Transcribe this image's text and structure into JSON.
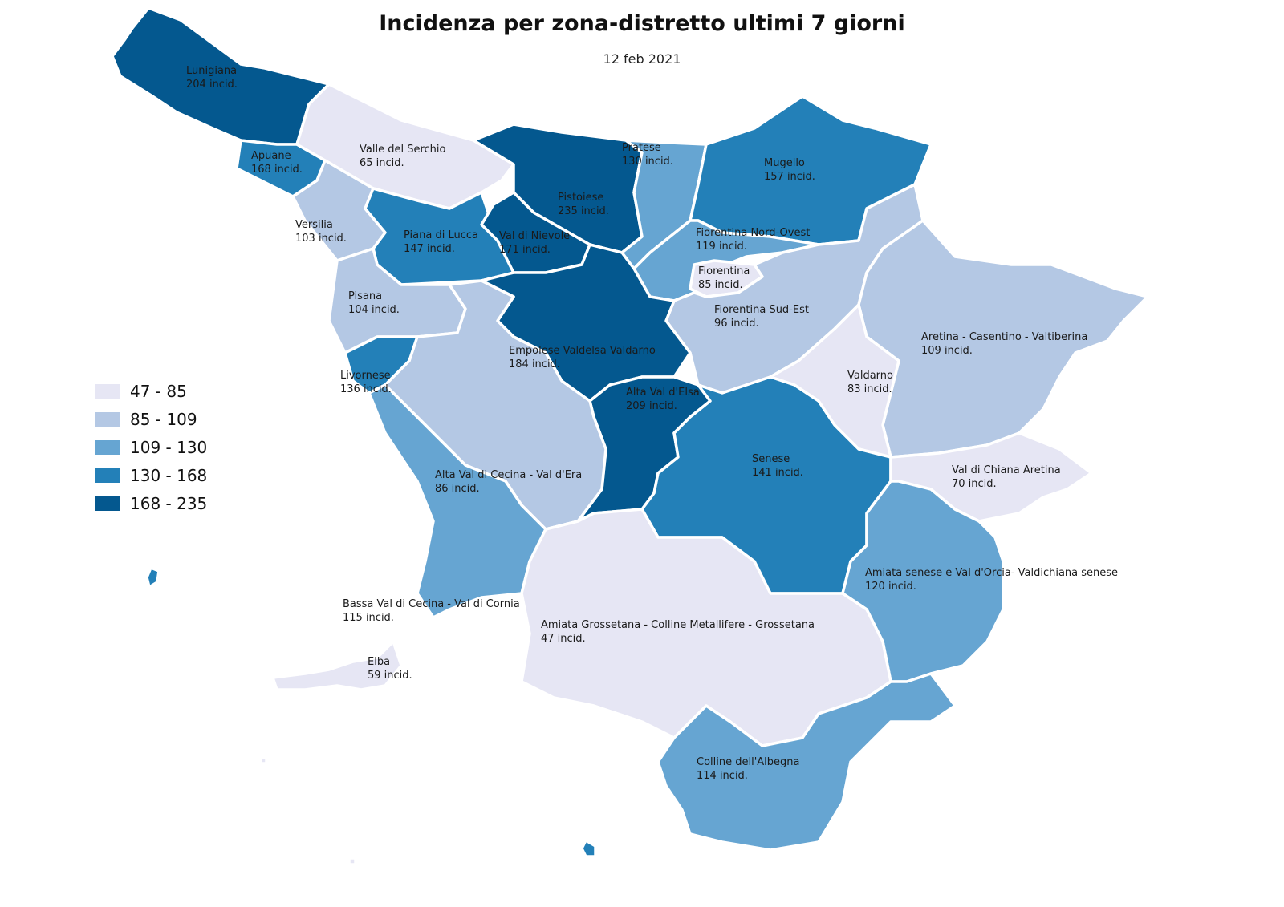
{
  "title": "Incidenza per zona-distretto ultimi 7 giorni",
  "subtitle": "12 feb 2021",
  "palette": [
    "#e6e6f4",
    "#b4c8e4",
    "#66a5d2",
    "#2380b8",
    "#04588f"
  ],
  "legend": [
    {
      "label": "47 - 85",
      "cls": 0
    },
    {
      "label": "85 - 109",
      "cls": 1
    },
    {
      "label": "109 - 130",
      "cls": 2
    },
    {
      "label": "130 - 168",
      "cls": 3
    },
    {
      "label": "168 - 235",
      "cls": 4
    }
  ],
  "zones": [
    {
      "name": "Lunigiana",
      "value_text": "204 incid.",
      "value": 204,
      "cls": 4
    },
    {
      "name": "Apuane",
      "value_text": "168 incid.",
      "value": 168,
      "cls": 3
    },
    {
      "name": "Valle del Serchio",
      "value_text": "65 incid.",
      "value": 65,
      "cls": 0
    },
    {
      "name": "Versilia",
      "value_text": "103 incid.",
      "value": 103,
      "cls": 1
    },
    {
      "name": "Piana di Lucca",
      "value_text": "147 incid.",
      "value": 147,
      "cls": 3
    },
    {
      "name": "Pistoiese",
      "value_text": "235 incid.",
      "value": 235,
      "cls": 4
    },
    {
      "name": "Val di Nievole",
      "value_text": "171 incid.",
      "value": 171,
      "cls": 4
    },
    {
      "name": "Pratese",
      "value_text": "130 incid.",
      "value": 130,
      "cls": 2
    },
    {
      "name": "Mugello",
      "value_text": "157 incid.",
      "value": 157,
      "cls": 3
    },
    {
      "name": "Fiorentina Nord-Ovest",
      "value_text": "119 incid.",
      "value": 119,
      "cls": 2
    },
    {
      "name": "Fiorentina",
      "value_text": "85 incid.",
      "value": 85,
      "cls": 0
    },
    {
      "name": "Fiorentina Sud-Est",
      "value_text": "96 incid.",
      "value": 96,
      "cls": 1
    },
    {
      "name": "Pisana",
      "value_text": "104 incid.",
      "value": 104,
      "cls": 1
    },
    {
      "name": "Empolese Valdelsa Valdarno",
      "value_text": "184 incid.",
      "value": 184,
      "cls": 4
    },
    {
      "name": "Livornese",
      "value_text": "136 incid.",
      "value": 136,
      "cls": 3
    },
    {
      "name": "Alta Val d'Elsa",
      "value_text": "209 incid.",
      "value": 209,
      "cls": 4
    },
    {
      "name": "Aretina - Casentino - Valtiberina",
      "value_text": "109 incid.",
      "value": 109,
      "cls": 1
    },
    {
      "name": "Valdarno",
      "value_text": "83 incid.",
      "value": 83,
      "cls": 0
    },
    {
      "name": "Senese",
      "value_text": "141 incid.",
      "value": 141,
      "cls": 3
    },
    {
      "name": "Val di Chiana Aretina",
      "value_text": "70 incid.",
      "value": 70,
      "cls": 0
    },
    {
      "name": "Alta Val di Cecina - Val d'Era",
      "value_text": "86 incid.",
      "value": 86,
      "cls": 1
    },
    {
      "name": "Amiata senese e Val d'Orcia- Valdichiana senese",
      "value_text": "120 incid.",
      "value": 120,
      "cls": 2
    },
    {
      "name": "Bassa Val di Cecina - Val di Cornia",
      "value_text": "115 incid.",
      "value": 115,
      "cls": 2
    },
    {
      "name": "Amiata Grossetana - Colline Metallifere - Grossetana",
      "value_text": "47 incid.",
      "value": 47,
      "cls": 0
    },
    {
      "name": "Elba",
      "value_text": "59 incid.",
      "value": 59,
      "cls": 0
    },
    {
      "name": "Colline dell'Albegna",
      "value_text": "114 incid.",
      "value": 114,
      "cls": 2
    }
  ]
}
